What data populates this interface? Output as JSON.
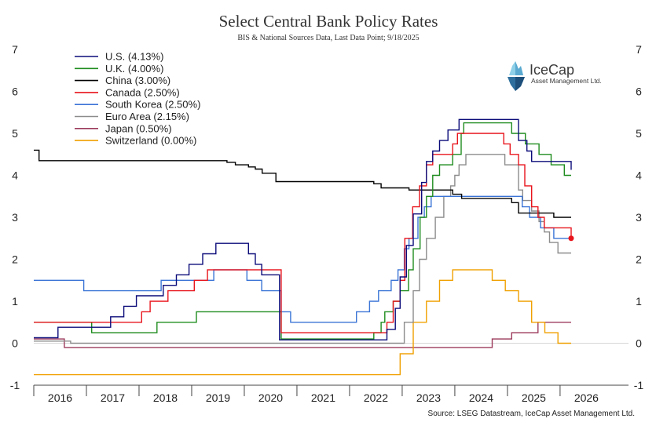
{
  "chart_data": {
    "type": "line",
    "step": true,
    "title": "Select Central Bank Policy Rates",
    "subtitle": "BIS & National Sources Data, Last Data Point; 9/18/2025",
    "source": "Source: LSEG Datastream, IceCap Asset Management Ltd.",
    "xlim": [
      2015.5,
      2026.8
    ],
    "ylim": [
      -1,
      7
    ],
    "y_ticks": [
      -1,
      0,
      1,
      2,
      3,
      4,
      5,
      6,
      7
    ],
    "x_ticks": [
      "2016",
      "2017",
      "2018",
      "2019",
      "2020",
      "2021",
      "2022",
      "2023",
      "2024",
      "2025",
      "2026"
    ],
    "x_tick_positions": [
      2016,
      2017,
      2018,
      2019,
      2020,
      2021,
      2022,
      2023,
      2024,
      2025,
      2026
    ],
    "grid": false,
    "legend_position": "top-left",
    "highlight_point": {
      "x": 2025.71,
      "y": 2.5,
      "color": "#e8141c"
    },
    "series": [
      {
        "name": "U.S. (4.13%)",
        "color": "#0b0b7a",
        "points": [
          [
            2015.5,
            0.13
          ],
          [
            2015.96,
            0.38
          ],
          [
            2016.96,
            0.63
          ],
          [
            2017.21,
            0.88
          ],
          [
            2017.45,
            1.13
          ],
          [
            2017.96,
            1.38
          ],
          [
            2018.21,
            1.63
          ],
          [
            2018.45,
            1.88
          ],
          [
            2018.71,
            2.13
          ],
          [
            2018.96,
            2.38
          ],
          [
            2019.58,
            2.13
          ],
          [
            2019.71,
            1.88
          ],
          [
            2019.83,
            1.63
          ],
          [
            2020.17,
            0.08
          ],
          [
            2022.21,
            0.33
          ],
          [
            2022.37,
            0.83
          ],
          [
            2022.46,
            1.58
          ],
          [
            2022.58,
            2.33
          ],
          [
            2022.71,
            3.08
          ],
          [
            2022.87,
            3.83
          ],
          [
            2022.96,
            4.33
          ],
          [
            2023.08,
            4.58
          ],
          [
            2023.21,
            4.83
          ],
          [
            2023.37,
            5.08
          ],
          [
            2023.58,
            5.33
          ],
          [
            2024.71,
            4.83
          ],
          [
            2024.87,
            4.58
          ],
          [
            2024.96,
            4.33
          ],
          [
            2025.71,
            4.13
          ]
        ]
      },
      {
        "name": "U.K. (4.00%)",
        "color": "#1e8c1e",
        "points": [
          [
            2015.5,
            0.5
          ],
          [
            2016.6,
            0.25
          ],
          [
            2017.84,
            0.5
          ],
          [
            2018.59,
            0.75
          ],
          [
            2020.2,
            0.1
          ],
          [
            2021.96,
            0.25
          ],
          [
            2022.1,
            0.5
          ],
          [
            2022.17,
            0.75
          ],
          [
            2022.33,
            1.0
          ],
          [
            2022.46,
            1.25
          ],
          [
            2022.62,
            1.75
          ],
          [
            2022.71,
            2.25
          ],
          [
            2022.84,
            3.0
          ],
          [
            2022.96,
            3.5
          ],
          [
            2023.08,
            4.0
          ],
          [
            2023.21,
            4.25
          ],
          [
            2023.46,
            4.5
          ],
          [
            2023.62,
            5.0
          ],
          [
            2023.67,
            5.25
          ],
          [
            2024.58,
            5.0
          ],
          [
            2024.84,
            4.75
          ],
          [
            2025.1,
            4.5
          ],
          [
            2025.33,
            4.25
          ],
          [
            2025.58,
            4.0
          ],
          [
            2025.71,
            4.0
          ]
        ]
      },
      {
        "name": "China (3.00%)",
        "color": "#000000",
        "points": [
          [
            2015.5,
            4.6
          ],
          [
            2015.6,
            4.35
          ],
          [
            2019.17,
            4.31
          ],
          [
            2019.33,
            4.25
          ],
          [
            2019.58,
            4.2
          ],
          [
            2019.71,
            4.15
          ],
          [
            2019.84,
            4.05
          ],
          [
            2020.1,
            3.85
          ],
          [
            2021.96,
            3.8
          ],
          [
            2022.1,
            3.7
          ],
          [
            2022.63,
            3.65
          ],
          [
            2023.46,
            3.55
          ],
          [
            2023.63,
            3.45
          ],
          [
            2024.58,
            3.35
          ],
          [
            2024.71,
            3.1
          ],
          [
            2024.96,
            3.1
          ],
          [
            2025.38,
            3.0
          ],
          [
            2025.71,
            3.0
          ]
        ]
      },
      {
        "name": "Canada (2.50%)",
        "color": "#e8141c",
        "points": [
          [
            2015.5,
            0.5
          ],
          [
            2015.55,
            0.5
          ],
          [
            2017.55,
            0.75
          ],
          [
            2017.71,
            1.0
          ],
          [
            2018.05,
            1.25
          ],
          [
            2018.55,
            1.5
          ],
          [
            2018.8,
            1.75
          ],
          [
            2020.2,
            0.25
          ],
          [
            2022.21,
            0.5
          ],
          [
            2022.33,
            1.0
          ],
          [
            2022.46,
            1.5
          ],
          [
            2022.55,
            2.5
          ],
          [
            2022.7,
            3.25
          ],
          [
            2022.83,
            3.75
          ],
          [
            2022.96,
            4.25
          ],
          [
            2023.08,
            4.5
          ],
          [
            2023.46,
            4.75
          ],
          [
            2023.55,
            5.0
          ],
          [
            2024.43,
            4.75
          ],
          [
            2024.55,
            4.5
          ],
          [
            2024.71,
            4.25
          ],
          [
            2024.83,
            3.75
          ],
          [
            2024.96,
            3.25
          ],
          [
            2025.08,
            3.0
          ],
          [
            2025.2,
            2.75
          ],
          [
            2025.71,
            2.5
          ]
        ]
      },
      {
        "name": "South Korea (2.50%)",
        "color": "#3a74d6",
        "points": [
          [
            2015.5,
            1.5
          ],
          [
            2016.45,
            1.25
          ],
          [
            2017.92,
            1.5
          ],
          [
            2018.92,
            1.75
          ],
          [
            2019.55,
            1.5
          ],
          [
            2019.83,
            1.25
          ],
          [
            2020.2,
            0.75
          ],
          [
            2020.38,
            0.5
          ],
          [
            2021.63,
            0.75
          ],
          [
            2021.88,
            1.0
          ],
          [
            2022.05,
            1.25
          ],
          [
            2022.29,
            1.5
          ],
          [
            2022.42,
            1.75
          ],
          [
            2022.54,
            2.25
          ],
          [
            2022.63,
            2.5
          ],
          [
            2022.8,
            3.0
          ],
          [
            2022.92,
            3.25
          ],
          [
            2023.05,
            3.5
          ],
          [
            2024.78,
            3.25
          ],
          [
            2024.92,
            3.0
          ],
          [
            2025.13,
            2.75
          ],
          [
            2025.38,
            2.5
          ],
          [
            2025.71,
            2.5
          ]
        ]
      },
      {
        "name": "Euro Area (2.15%)",
        "color": "#8c8c8c",
        "points": [
          [
            2015.5,
            0.05
          ],
          [
            2016.2,
            0.0
          ],
          [
            2022.54,
            0.5
          ],
          [
            2022.71,
            1.25
          ],
          [
            2022.83,
            2.0
          ],
          [
            2022.96,
            2.5
          ],
          [
            2023.13,
            3.0
          ],
          [
            2023.29,
            3.5
          ],
          [
            2023.42,
            3.75
          ],
          [
            2023.5,
            4.0
          ],
          [
            2023.58,
            4.25
          ],
          [
            2023.71,
            4.5
          ],
          [
            2024.45,
            4.25
          ],
          [
            2024.71,
            3.65
          ],
          [
            2024.79,
            3.4
          ],
          [
            2024.96,
            3.15
          ],
          [
            2025.1,
            2.9
          ],
          [
            2025.2,
            2.65
          ],
          [
            2025.3,
            2.4
          ],
          [
            2025.46,
            2.15
          ],
          [
            2025.71,
            2.15
          ]
        ]
      },
      {
        "name": "Japan (0.50%)",
        "color": "#9c3a5c",
        "points": [
          [
            2015.5,
            0.1
          ],
          [
            2016.08,
            -0.1
          ],
          [
            2024.21,
            0.1
          ],
          [
            2024.58,
            0.25
          ],
          [
            2025.08,
            0.5
          ],
          [
            2025.71,
            0.5
          ]
        ]
      },
      {
        "name": "Switzerland (0.00%)",
        "color": "#f0a000",
        "points": [
          [
            2015.5,
            -0.75
          ],
          [
            2022.46,
            -0.25
          ],
          [
            2022.71,
            0.5
          ],
          [
            2022.96,
            1.0
          ],
          [
            2023.21,
            1.5
          ],
          [
            2023.46,
            1.75
          ],
          [
            2024.21,
            1.5
          ],
          [
            2024.46,
            1.25
          ],
          [
            2024.71,
            1.0
          ],
          [
            2024.96,
            0.5
          ],
          [
            2025.21,
            0.25
          ],
          [
            2025.46,
            0.0
          ],
          [
            2025.71,
            0.0
          ]
        ]
      },
      {
        "name": "",
        "color": "#d8d8d8",
        "points": [
          [
            2015.5,
            0.0
          ],
          [
            2026.8,
            0.0
          ]
        ]
      }
    ]
  },
  "logo": {
    "name": "IceCap",
    "subtitle": "Asset Management Ltd.",
    "icon": "iceberg-icon"
  }
}
